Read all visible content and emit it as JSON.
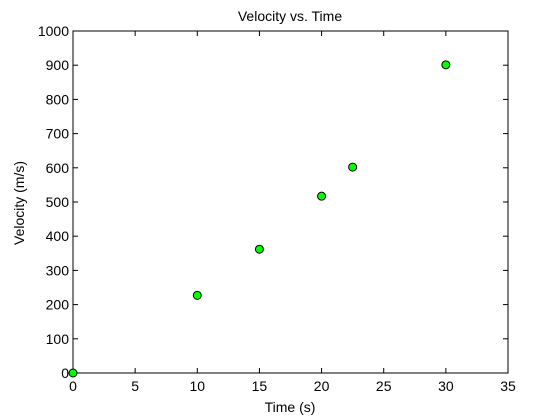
{
  "chart_data": {
    "type": "scatter",
    "title": "Velocity vs. Time",
    "xlabel": "Time (s)",
    "ylabel": "Velocity (m/s)",
    "xlim": [
      0,
      35
    ],
    "ylim": [
      0,
      1000
    ],
    "xticks": [
      0,
      5,
      10,
      15,
      20,
      25,
      30,
      35
    ],
    "yticks": [
      0,
      100,
      200,
      300,
      400,
      500,
      600,
      700,
      800,
      900,
      1000
    ],
    "grid": false,
    "legend": "none",
    "series": [
      {
        "x": [
          0,
          10,
          15,
          20,
          22.5,
          30
        ],
        "y": [
          0,
          227,
          362,
          517,
          602,
          901
        ],
        "marker": "circle",
        "color": "#00ff00",
        "edge_color": "#000000"
      }
    ]
  }
}
